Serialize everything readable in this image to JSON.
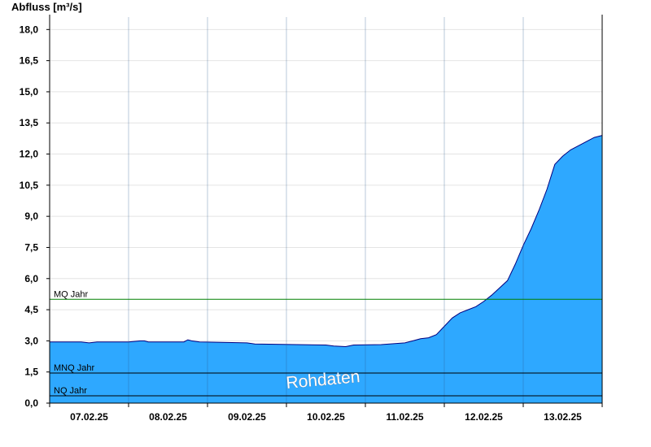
{
  "chart_data": {
    "type": "area",
    "ylabel": "Abfluss [m³/s]",
    "ylim": [
      0,
      18.6
    ],
    "yticks": [
      "0,0",
      "1,5",
      "3,0",
      "4,5",
      "6,0",
      "7,5",
      "9,0",
      "10,5",
      "12,0",
      "13,5",
      "15,0",
      "16,5",
      "18,0"
    ],
    "ytick_values": [
      0,
      1.5,
      3,
      4.5,
      6,
      7.5,
      9,
      10.5,
      12,
      13.5,
      15,
      16.5,
      18
    ],
    "xticks": [
      "07.02.25",
      "08.02.25",
      "09.02.25",
      "10.02.25",
      "11.02.25",
      "12.02.25",
      "13.02.25"
    ],
    "xlim_days": [
      0,
      7
    ],
    "grid": true,
    "fill_color": "#2ea8ff",
    "line_color": "#000080",
    "series": [
      {
        "x": [
          0,
          0.4,
          0.5,
          0.6,
          1.0,
          1.15,
          1.2,
          1.25,
          1.7,
          1.75,
          1.8,
          1.9,
          2.5,
          2.6,
          3.5,
          3.6,
          3.75,
          3.85,
          4.2,
          4.5,
          4.6,
          4.7,
          4.8,
          4.9,
          5.0,
          5.1,
          5.2,
          5.3,
          5.4,
          5.5,
          5.6,
          5.7,
          5.8,
          5.9,
          6.0,
          6.1,
          6.2,
          6.3,
          6.4,
          6.5,
          6.6,
          6.7,
          6.8,
          6.9,
          7.0
        ],
        "y": [
          2.95,
          2.95,
          2.9,
          2.95,
          2.95,
          3.0,
          3.0,
          2.95,
          2.95,
          3.05,
          3.0,
          2.95,
          2.9,
          2.85,
          2.8,
          2.75,
          2.72,
          2.8,
          2.82,
          2.9,
          3.0,
          3.1,
          3.15,
          3.3,
          3.7,
          4.1,
          4.35,
          4.5,
          4.65,
          4.9,
          5.2,
          5.55,
          5.9,
          6.7,
          7.6,
          8.4,
          9.3,
          10.3,
          11.5,
          11.9,
          12.2,
          12.4,
          12.6,
          12.8,
          12.9
        ]
      }
    ],
    "reference_lines": [
      {
        "label": "MQ Jahr",
        "value": 5.0,
        "color": "#008000"
      },
      {
        "label": "MNQ Jahr",
        "value": 1.45,
        "color": "#000000"
      },
      {
        "label": "NQ Jahr",
        "value": 0.35,
        "color": "#000000"
      }
    ],
    "watermark": "Rohdaten"
  }
}
